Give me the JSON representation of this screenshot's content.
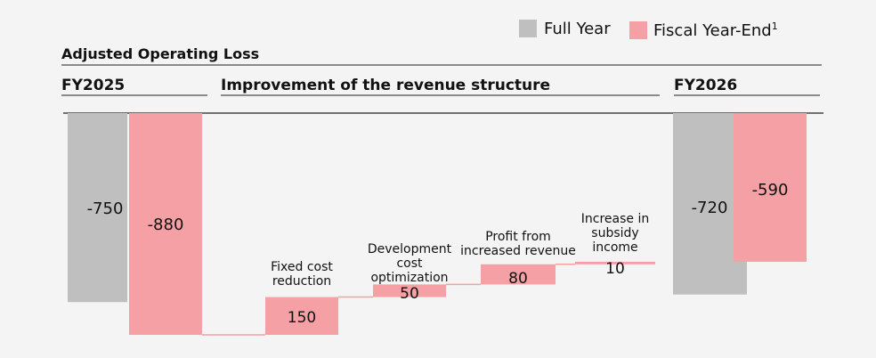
{
  "legend": {
    "full_year_label": "Full Year",
    "fiscal_year_end_label": "Fiscal Year-End",
    "fiscal_year_end_sup": "1",
    "full_year_color": "#bfbfbf",
    "fiscal_year_end_color": "#f4a0a4"
  },
  "header": {
    "title": "Adjusted Operating Loss",
    "col_left": "FY2025",
    "col_mid": "Improvement of the revenue structure",
    "col_right": "FY2026"
  },
  "chart_data": {
    "type": "waterfall",
    "title": "Adjusted Operating Loss",
    "ylim": [
      -900,
      0
    ],
    "totals": [
      {
        "period": "FY2025",
        "series": "Full Year",
        "value": -750,
        "label": "-750"
      },
      {
        "period": "FY2025",
        "series": "Fiscal Year-End",
        "value": -880,
        "label": "-880"
      },
      {
        "period": "FY2026",
        "series": "Full Year",
        "value": -720,
        "label": "-720"
      },
      {
        "period": "FY2026",
        "series": "Fiscal Year-End",
        "value": -590,
        "label": "-590"
      }
    ],
    "steps": [
      {
        "category": "Fixed cost reduction",
        "lines": [
          "Fixed cost",
          "reduction"
        ],
        "value": 150,
        "label": "150"
      },
      {
        "category": "Development cost optimization",
        "lines": [
          "Development",
          "cost",
          "optimization"
        ],
        "value": 50,
        "label": "50"
      },
      {
        "category": "Profit from increased revenue",
        "lines": [
          "Profit from",
          "increased revenue"
        ],
        "value": 80,
        "label": "80"
      },
      {
        "category": "Increase in subsidy income",
        "lines": [
          "Increase in",
          "subsidy",
          "income"
        ],
        "value": 10,
        "label": "10"
      }
    ]
  }
}
